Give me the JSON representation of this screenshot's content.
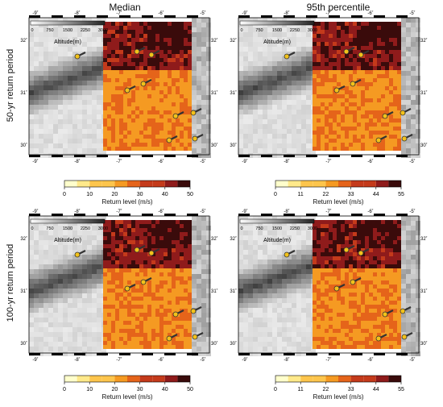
{
  "columns": {
    "left": "Median",
    "right": "95th percentile"
  },
  "rows": {
    "top": "50-yr return period",
    "bottom": "100-yr return period"
  },
  "longitude_ticks": [
    "-9˚",
    "-8˚",
    "-7˚",
    "-6˚",
    "-5˚"
  ],
  "latitude_ticks": [
    "32˚",
    "31˚",
    "30˚"
  ],
  "altitude_legend": {
    "title": "Altitude(m)",
    "ticks": [
      "0",
      "750",
      "1500",
      "2250",
      "3000"
    ]
  },
  "colorbars": {
    "median": {
      "ticks": [
        "0",
        "10",
        "20",
        "30",
        "40",
        "50"
      ],
      "label": "Return level (m/s)"
    },
    "p95": {
      "ticks": [
        "0",
        "11",
        "22",
        "33",
        "44",
        "55"
      ],
      "label": "Return level (m/s)"
    }
  },
  "colors": {
    "ramp": [
      "#ffffcc",
      "#ffe98a",
      "#fdc54c",
      "#f59a22",
      "#e5641a",
      "#c43a1b",
      "#8f1b1b",
      "#3a0b0b"
    ],
    "terrain_low": "#f2f2f2",
    "terrain_high": "#3a3a3a",
    "station": "#f2c21a"
  }
}
